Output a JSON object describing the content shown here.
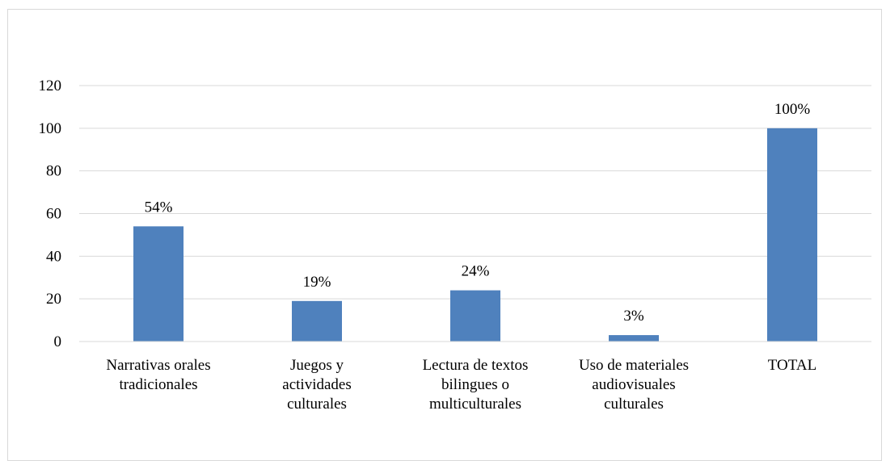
{
  "chart_data": {
    "type": "bar",
    "categories": [
      [
        "Narrativas orales",
        "tradicionales"
      ],
      [
        "Juegos y",
        "actividades",
        "culturales"
      ],
      [
        "Lectura de textos",
        "bilingues o",
        "multiculturales"
      ],
      [
        "Uso de materiales",
        "audiovisuales",
        "culturales"
      ],
      [
        "TOTAL"
      ]
    ],
    "values": [
      54,
      19,
      24,
      3,
      100
    ],
    "data_labels": [
      "54%",
      "19%",
      "24%",
      "3%",
      "100%"
    ],
    "title": "",
    "xlabel": "",
    "ylabel": "",
    "ylim": [
      0,
      120
    ],
    "yticks": [
      0,
      20,
      40,
      60,
      80,
      100,
      120
    ],
    "grid": true,
    "legend": "none",
    "bar_color": "#4f81bd",
    "grid_color": "#d9d9d9"
  }
}
